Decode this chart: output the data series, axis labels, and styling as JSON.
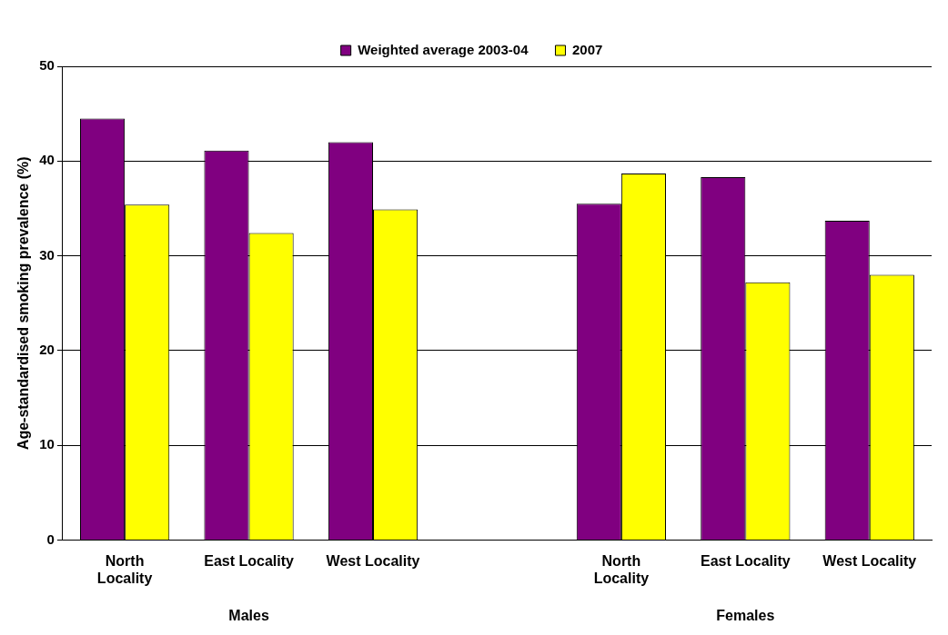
{
  "chart_data": {
    "type": "bar",
    "ylabel": "Age-standardised smoking prevalence (%)",
    "categories": [
      "North Locality",
      "East Locality",
      "West Locality",
      null,
      "North Locality",
      "East Locality",
      "West Locality"
    ],
    "series": [
      {
        "name": "Weighted average 2003-04",
        "color": "#800080",
        "values": [
          44.5,
          41.1,
          42.0,
          null,
          35.5,
          38.3,
          33.7
        ]
      },
      {
        "name": "2007",
        "color": "#ffff00",
        "values": [
          35.4,
          32.4,
          34.9,
          null,
          38.7,
          27.2,
          28.0
        ]
      }
    ],
    "annotations": [
      "Males",
      "Females"
    ],
    "ylim": [
      0,
      50
    ],
    "yticks": [
      0,
      10,
      20,
      30,
      40,
      50
    ],
    "grid": "y",
    "legend": "top"
  }
}
